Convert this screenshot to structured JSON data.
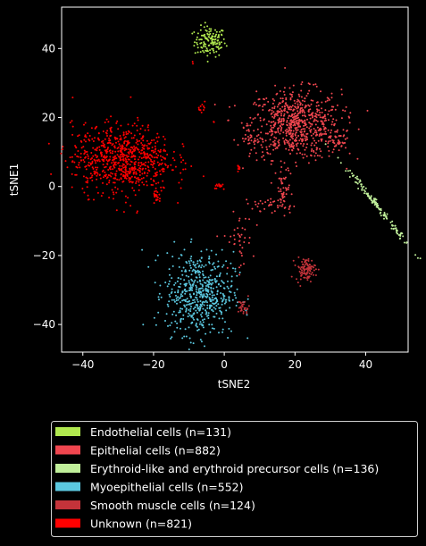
{
  "chart_data": {
    "type": "scatter",
    "title": "",
    "xlabel": "tSNE2",
    "ylabel": "tSNE1",
    "xlim": [
      -46,
      52
    ],
    "ylim": [
      -48,
      52
    ],
    "xticks": [
      -40,
      -20,
      0,
      20,
      40
    ],
    "yticks": [
      -40,
      -20,
      0,
      20,
      40
    ],
    "xtick_labels": [
      "−40",
      "−20",
      "0",
      "20",
      "40"
    ],
    "ytick_labels": [
      "−40",
      "−20",
      "0",
      "20",
      "40"
    ],
    "grid": false,
    "legend_position": "below",
    "series": [
      {
        "name": "Endothelial cells (n=131)",
        "color": "#b0e84f",
        "clusters": [
          {
            "cx": -4,
            "cy": 42,
            "sx": 2.2,
            "sy": 2.2,
            "n": 131
          }
        ]
      },
      {
        "name": "Epithelial cells (n=882)",
        "color": "#f0464f",
        "clusters": [
          {
            "cx": 20,
            "cy": 18,
            "sx": 6.5,
            "sy": 5,
            "n": 700
          },
          {
            "cx": 32,
            "cy": 13,
            "sx": 2,
            "sy": 1.6,
            "n": 40
          },
          {
            "cx": 17,
            "cy": -2,
            "sx": 1.2,
            "sy": 4,
            "n": 50
          },
          {
            "cx": 12,
            "cy": -5,
            "sx": 3,
            "sy": 1,
            "n": 30
          },
          {
            "cx": 4,
            "cy": -16,
            "sx": 2,
            "sy": 4,
            "n": 40
          },
          {
            "cx": 8,
            "cy": 14,
            "sx": 1.6,
            "sy": 1.4,
            "n": 22
          }
        ]
      },
      {
        "name": "Erythroid-like and erythroid precursor cells (n=136)",
        "color": "#c0ef9a",
        "clusters": [
          {
            "cx": 43.5,
            "cy": -6,
            "sx": 1,
            "sy": 5,
            "slope": -1.3,
            "n": 136
          }
        ]
      },
      {
        "name": "Myoepithelial cells (n=552)",
        "color": "#5bc8e0",
        "clusters": [
          {
            "cx": -7,
            "cy": -31,
            "sx": 4.8,
            "sy": 6,
            "n": 552
          }
        ]
      },
      {
        "name": "Smooth muscle cells (n=124)",
        "color": "#c4333a",
        "clusters": [
          {
            "cx": 23,
            "cy": -24,
            "sx": 1.4,
            "sy": 1.6,
            "n": 95
          },
          {
            "cx": 5.5,
            "cy": -35,
            "sx": 0.8,
            "sy": 1.2,
            "n": 29
          }
        ]
      },
      {
        "name": "Unknown (n=821)",
        "color": "#ff0000",
        "clusters": [
          {
            "cx": -29,
            "cy": 8,
            "sx": 7,
            "sy": 5,
            "n": 760
          },
          {
            "cx": -6,
            "cy": 23,
            "sx": 0.6,
            "sy": 0.6,
            "n": 12
          },
          {
            "cx": -1,
            "cy": 0,
            "sx": 0.8,
            "sy": 0.6,
            "n": 15
          },
          {
            "cx": 4,
            "cy": 5,
            "sx": 0.4,
            "sy": 0.4,
            "n": 8
          },
          {
            "cx": -9,
            "cy": 36,
            "sx": 0.3,
            "sy": 0.3,
            "n": 2
          },
          {
            "cx": -3,
            "cy": 19,
            "sx": 0.3,
            "sy": 0.3,
            "n": 2
          },
          {
            "cx": -19,
            "cy": -3,
            "sx": 0.5,
            "sy": 1,
            "n": 22
          }
        ]
      }
    ]
  }
}
